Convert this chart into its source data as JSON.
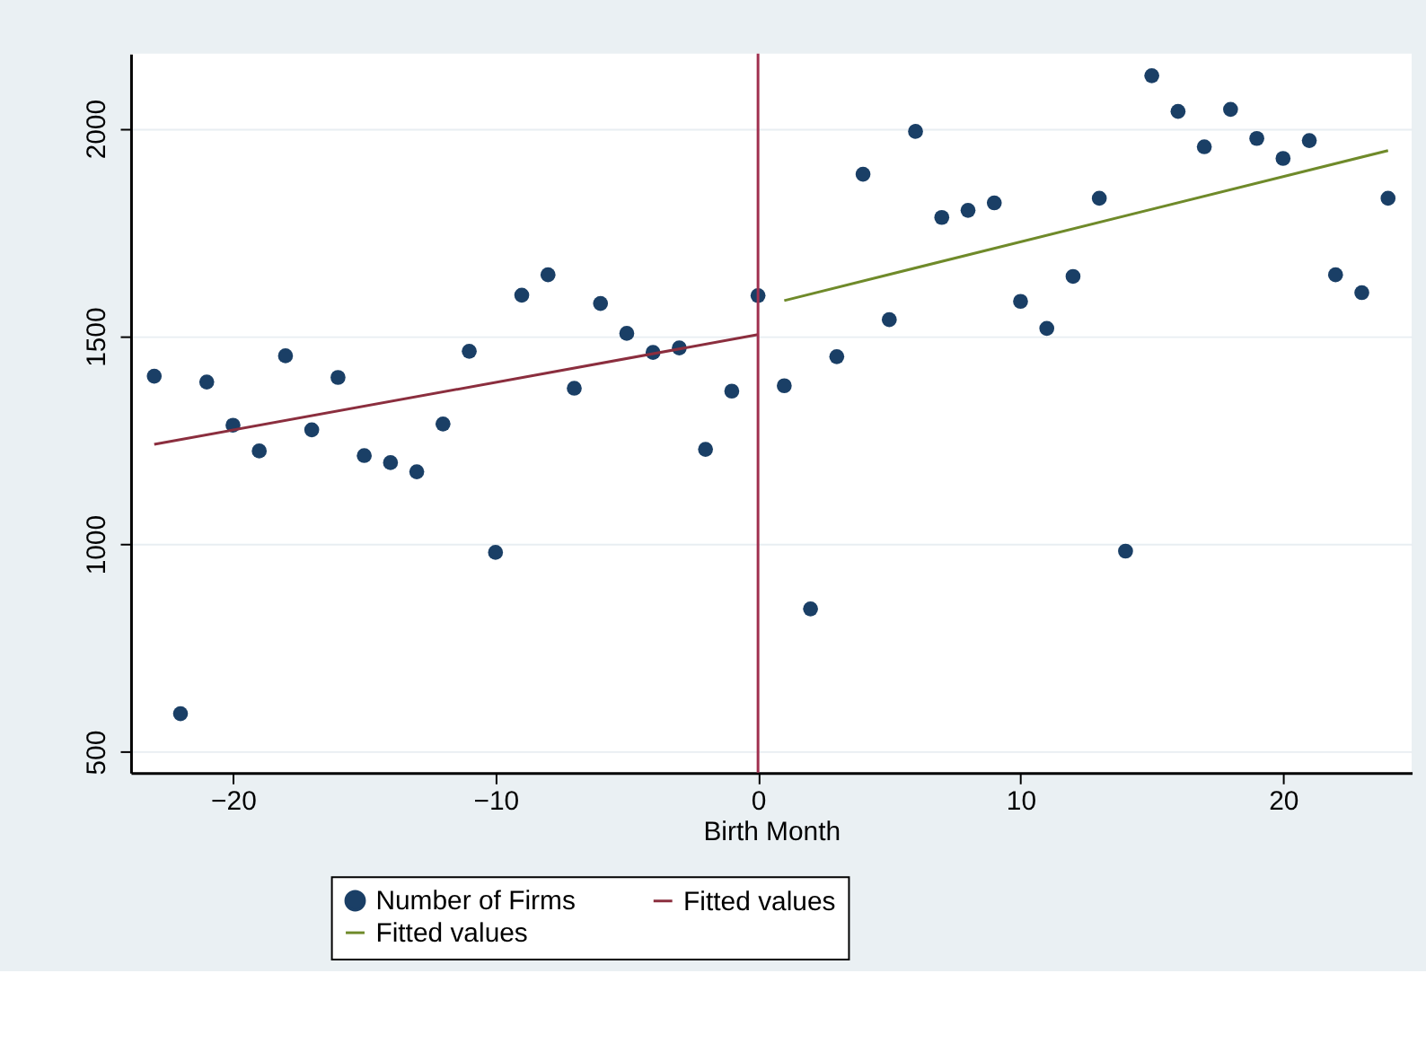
{
  "chart_data": {
    "type": "scatter",
    "xlabel": "Birth Month",
    "xlim": [
      -23.9,
      24.9
    ],
    "xticks": [
      -20,
      -10,
      0,
      10,
      20
    ],
    "ylim": [
      450,
      2180
    ],
    "yticks": [
      500,
      1000,
      1500,
      2000
    ],
    "grid": "y",
    "legend": "bottom",
    "ref_lines": [
      {
        "axis": "x",
        "value": 0,
        "color": "#a0304f"
      }
    ],
    "series": [
      {
        "name": "Number of Firms",
        "type": "scatter",
        "marker": "circle",
        "color": "#1a3f66",
        "x": [
          -23,
          -22,
          -21,
          -20,
          -19,
          -18,
          -17,
          -16,
          -15,
          -14,
          -13,
          -12,
          -11,
          -10,
          -9,
          -8,
          -7,
          -6,
          -5,
          -4,
          -3,
          -2,
          -1,
          0,
          1,
          2,
          3,
          4,
          5,
          6,
          7,
          8,
          9,
          10,
          11,
          12,
          13,
          14,
          15,
          16,
          17,
          18,
          19,
          20,
          21,
          22,
          23,
          24
        ],
        "values": [
          1404,
          592,
          1390,
          1286,
          1224,
          1453,
          1275,
          1401,
          1213,
          1196,
          1174,
          1289,
          1464,
          980,
          1599,
          1648,
          1375,
          1579,
          1507,
          1461,
          1472,
          1228,
          1368,
          1598,
          1381,
          844,
          1451,
          1890,
          1540,
          1993,
          1786,
          1803,
          1821,
          1584,
          1519,
          1644,
          1832,
          983,
          2127,
          2041,
          1956,
          2046,
          1976,
          1928,
          1971,
          1648,
          1605,
          1832
        ]
      },
      {
        "name": "Fitted values",
        "type": "line",
        "marker": "none",
        "line_style": "solid",
        "color": "#8b2e3e",
        "x": [
          -23,
          0
        ],
        "values": [
          1240,
          1504
        ]
      },
      {
        "name": "Fitted values",
        "type": "line",
        "marker": "none",
        "line_style": "solid",
        "color": "#6f8a2a",
        "x": [
          1,
          24
        ],
        "values": [
          1586,
          1947
        ]
      }
    ]
  }
}
